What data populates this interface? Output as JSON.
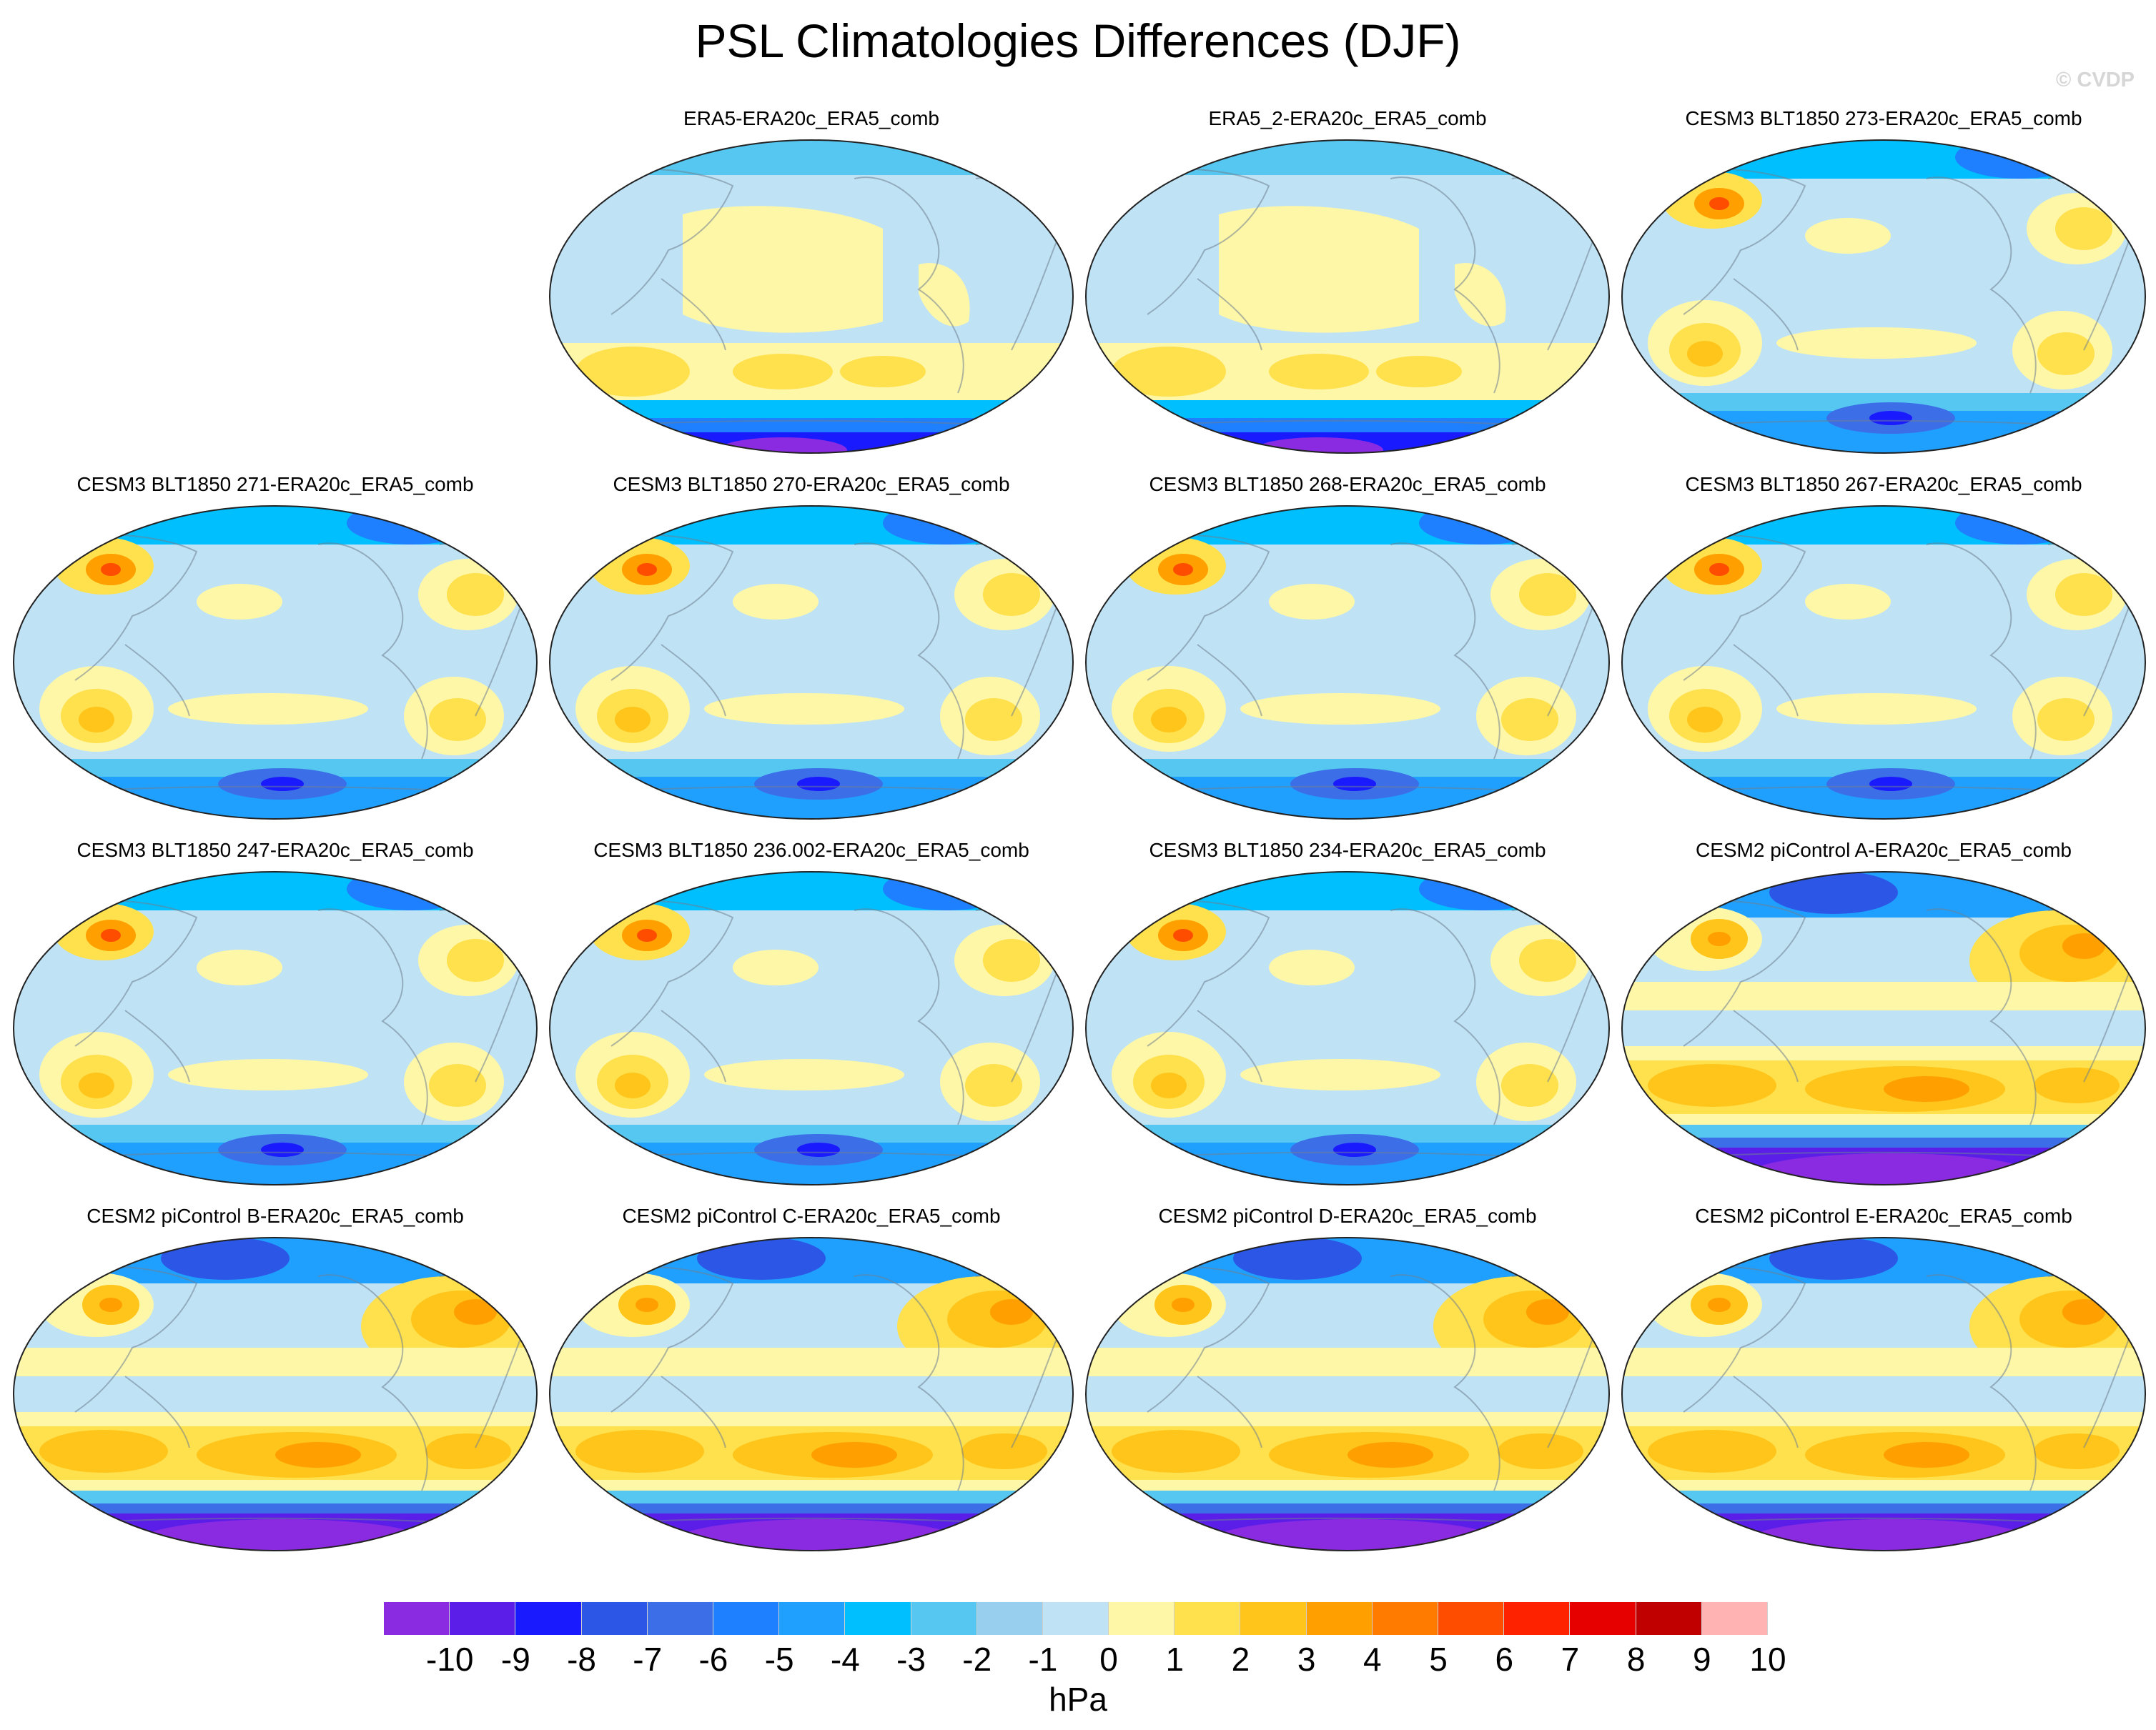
{
  "title": "PSL Climatologies Differences (DJF)",
  "watermark": "© CVDP",
  "colorbar": {
    "labels": [
      "-10",
      "-9",
      "-8",
      "-7",
      "-6",
      "-5",
      "-4",
      "-3",
      "-2",
      "-1",
      "0",
      "1",
      "2",
      "3",
      "4",
      "5",
      "6",
      "7",
      "8",
      "9",
      "10"
    ],
    "colors": [
      "#8a2be2",
      "#5a1ee8",
      "#1a1aff",
      "#2b56e6",
      "#3c6ee8",
      "#1e7fff",
      "#1fa0ff",
      "#00bfff",
      "#56c7f0",
      "#99cfee",
      "#bfe3f5",
      "#fff7a8",
      "#ffe04d",
      "#ffc51a",
      "#ff9f00",
      "#ff7b00",
      "#ff4d00",
      "#ff2200",
      "#e60000",
      "#c00000",
      "#ffb3b3"
    ],
    "units": "hPa"
  },
  "panels": [
    {
      "title": "ERA5-ERA20c_ERA5_comb",
      "style": "obs"
    },
    {
      "title": "ERA5_2-ERA20c_ERA5_comb",
      "style": "obs"
    },
    {
      "title": "CESM3 BLT1850 273-ERA20c_ERA5_comb",
      "style": "cesm3"
    },
    {
      "title": "CESM3 BLT1850 271-ERA20c_ERA5_comb",
      "style": "cesm3"
    },
    {
      "title": "CESM3 BLT1850 270-ERA20c_ERA5_comb",
      "style": "cesm3"
    },
    {
      "title": "CESM3 BLT1850 268-ERA20c_ERA5_comb",
      "style": "cesm3"
    },
    {
      "title": "CESM3 BLT1850 267-ERA20c_ERA5_comb",
      "style": "cesm3"
    },
    {
      "title": "CESM3 BLT1850 247-ERA20c_ERA5_comb",
      "style": "cesm3"
    },
    {
      "title": "CESM3 BLT1850 236.002-ERA20c_ERA5_comb",
      "style": "cesm3"
    },
    {
      "title": "CESM3 BLT1850 234-ERA20c_ERA5_comb",
      "style": "cesm3"
    },
    {
      "title": "CESM2 piControl A-ERA20c_ERA5_comb",
      "style": "cesm2"
    },
    {
      "title": "CESM2 piControl B-ERA20c_ERA5_comb",
      "style": "cesm2"
    },
    {
      "title": "CESM2 piControl C-ERA20c_ERA5_comb",
      "style": "cesm2"
    },
    {
      "title": "CESM2 piControl D-ERA20c_ERA5_comb",
      "style": "cesm2"
    },
    {
      "title": "CESM2 piControl E-ERA20c_ERA5_comb",
      "style": "cesm2"
    }
  ]
}
